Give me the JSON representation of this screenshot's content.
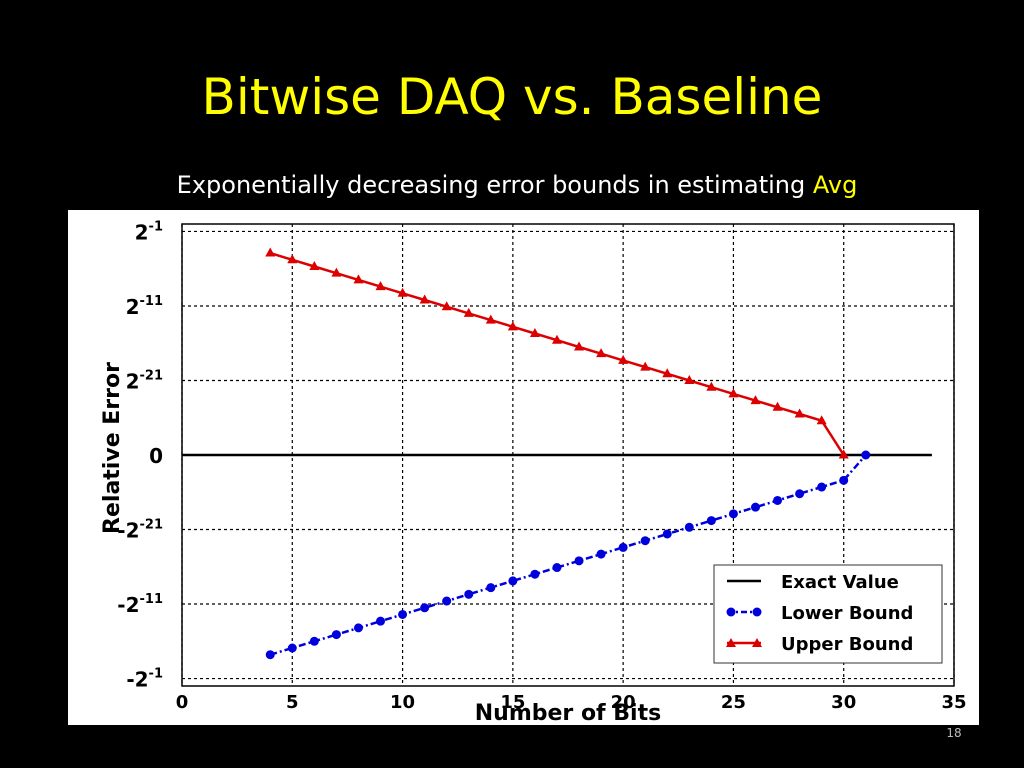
{
  "slide": {
    "title": "Bitwise DAQ vs. Baseline",
    "subtitle_prefix": "Exponentially decreasing error bounds in estimating ",
    "subtitle_highlight": "Avg",
    "page_number": "18"
  },
  "colors": {
    "background": "#000000",
    "title": "#ffff00",
    "subtitle": "#ffffff",
    "highlight": "#ffff00",
    "exact": "#000000",
    "lower": "#0000dd",
    "upper": "#dd0000"
  },
  "chart_data": {
    "type": "line",
    "title": "",
    "xlabel": "Number of Bits",
    "ylabel": "Relative Error",
    "xlim": [
      0,
      35
    ],
    "ylim": [
      -31,
      31
    ],
    "y_scale": "symmetric-log2",
    "x_ticks": [
      0,
      5,
      10,
      15,
      20,
      25,
      30,
      35
    ],
    "y_ticks": [
      {
        "value": 30,
        "base": "2",
        "exp": "-1"
      },
      {
        "value": 20,
        "base": "2",
        "exp": "-11"
      },
      {
        "value": 10,
        "base": "2",
        "exp": "-21"
      },
      {
        "value": 0,
        "base": "0",
        "exp": ""
      },
      {
        "value": -10,
        "base": "-2",
        "exp": "-21"
      },
      {
        "value": -20,
        "base": "-2",
        "exp": "-11"
      },
      {
        "value": -30,
        "base": "-2",
        "exp": "-1"
      }
    ],
    "grid": true,
    "legend_position": "bottom-right",
    "series": [
      {
        "name": "Exact Value",
        "color": "#000000",
        "style": "solid",
        "marker": "none",
        "x": [
          0,
          34
        ],
        "y": [
          0,
          0
        ]
      },
      {
        "name": "Lower Bound",
        "color": "#0000dd",
        "style": "dashdot",
        "marker": "circle",
        "x": [
          4,
          5,
          6,
          7,
          8,
          9,
          10,
          11,
          12,
          13,
          14,
          15,
          16,
          17,
          18,
          19,
          20,
          21,
          22,
          23,
          24,
          25,
          26,
          27,
          28,
          29,
          30,
          31
        ],
        "y": [
          -26.8,
          -25.9,
          -25,
          -24.1,
          -23.2,
          -22.3,
          -21.4,
          -20.5,
          -19.6,
          -18.7,
          -17.8,
          -16.9,
          -16,
          -15.1,
          -14.2,
          -13.3,
          -12.4,
          -11.5,
          -10.6,
          -9.7,
          -8.8,
          -7.9,
          -7,
          -6.1,
          -5.2,
          -4.3,
          -3.4,
          0
        ]
      },
      {
        "name": "Upper Bound",
        "color": "#dd0000",
        "style": "solid",
        "marker": "triangle",
        "x": [
          4,
          5,
          6,
          7,
          8,
          9,
          10,
          11,
          12,
          13,
          14,
          15,
          16,
          17,
          18,
          19,
          20,
          21,
          22,
          23,
          24,
          25,
          26,
          27,
          28,
          29,
          30
        ],
        "y": [
          27.1,
          26.2,
          25.3,
          24.4,
          23.5,
          22.6,
          21.7,
          20.8,
          19.9,
          19,
          18.1,
          17.2,
          16.3,
          15.4,
          14.5,
          13.6,
          12.7,
          11.8,
          10.9,
          10,
          9.1,
          8.2,
          7.3,
          6.4,
          5.5,
          4.6,
          0
        ]
      }
    ]
  }
}
